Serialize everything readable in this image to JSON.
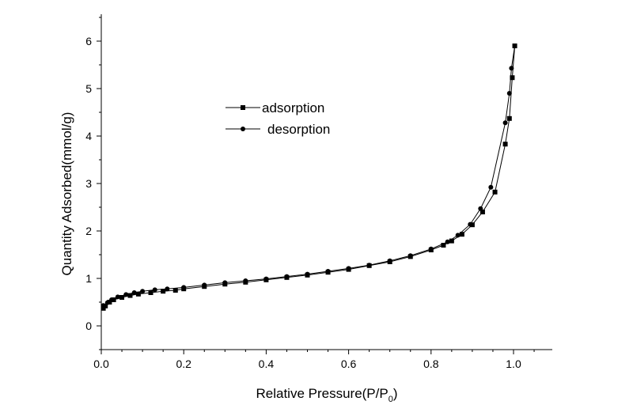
{
  "chart_data": {
    "type": "line",
    "xlabel_main": "Relative Pressure(P/P",
    "xlabel_sub": "0",
    "xlabel_close": ")",
    "ylabel": "Quantity Adsorbed(mmol/g)",
    "xlim": [
      0.0,
      1.1
    ],
    "ylim": [
      -0.5,
      6.6
    ],
    "x_ticks": [
      "0.0",
      "0.2",
      "0.4",
      "0.6",
      "0.8",
      "1.0"
    ],
    "x_tick_values": [
      0.0,
      0.2,
      0.4,
      0.6,
      0.8,
      1.0
    ],
    "y_ticks": [
      "0",
      "1",
      "2",
      "3",
      "4",
      "5",
      "6"
    ],
    "y_tick_values": [
      0,
      1,
      2,
      3,
      4,
      5,
      6
    ],
    "legend_position": "upper-left",
    "grid": false,
    "series": [
      {
        "name": "adsorption",
        "marker": "square",
        "points": [
          [
            0.005,
            0.37
          ],
          [
            0.01,
            0.42
          ],
          [
            0.02,
            0.5
          ],
          [
            0.03,
            0.55
          ],
          [
            0.05,
            0.6
          ],
          [
            0.07,
            0.64
          ],
          [
            0.09,
            0.67
          ],
          [
            0.12,
            0.7
          ],
          [
            0.15,
            0.73
          ],
          [
            0.18,
            0.75
          ],
          [
            0.2,
            0.78
          ],
          [
            0.25,
            0.83
          ],
          [
            0.3,
            0.88
          ],
          [
            0.35,
            0.92
          ],
          [
            0.4,
            0.97
          ],
          [
            0.45,
            1.02
          ],
          [
            0.5,
            1.07
          ],
          [
            0.55,
            1.13
          ],
          [
            0.6,
            1.19
          ],
          [
            0.65,
            1.27
          ],
          [
            0.7,
            1.35
          ],
          [
            0.75,
            1.46
          ],
          [
            0.8,
            1.6
          ],
          [
            0.83,
            1.7
          ],
          [
            0.85,
            1.79
          ],
          [
            0.875,
            1.93
          ],
          [
            0.9,
            2.13
          ],
          [
            0.925,
            2.4
          ],
          [
            0.955,
            2.82
          ],
          [
            0.98,
            3.83
          ],
          [
            0.99,
            4.37
          ],
          [
            0.997,
            5.23
          ],
          [
            1.003,
            5.9
          ]
        ]
      },
      {
        "name": "desorption",
        "marker": "circle",
        "points": [
          [
            1.003,
            5.9
          ],
          [
            0.995,
            5.43
          ],
          [
            0.99,
            4.9
          ],
          [
            0.98,
            4.28
          ],
          [
            0.945,
            2.92
          ],
          [
            0.92,
            2.47
          ],
          [
            0.895,
            2.14
          ],
          [
            0.865,
            1.91
          ],
          [
            0.84,
            1.77
          ],
          [
            0.8,
            1.62
          ],
          [
            0.75,
            1.48
          ],
          [
            0.7,
            1.37
          ],
          [
            0.65,
            1.28
          ],
          [
            0.6,
            1.21
          ],
          [
            0.55,
            1.15
          ],
          [
            0.5,
            1.09
          ],
          [
            0.45,
            1.04
          ],
          [
            0.4,
            0.99
          ],
          [
            0.35,
            0.95
          ],
          [
            0.3,
            0.91
          ],
          [
            0.25,
            0.86
          ],
          [
            0.2,
            0.81
          ],
          [
            0.16,
            0.78
          ],
          [
            0.13,
            0.76
          ],
          [
            0.1,
            0.73
          ],
          [
            0.08,
            0.7
          ],
          [
            0.06,
            0.66
          ],
          [
            0.04,
            0.61
          ],
          [
            0.025,
            0.55
          ],
          [
            0.015,
            0.49
          ],
          [
            0.005,
            0.43
          ]
        ]
      }
    ]
  }
}
